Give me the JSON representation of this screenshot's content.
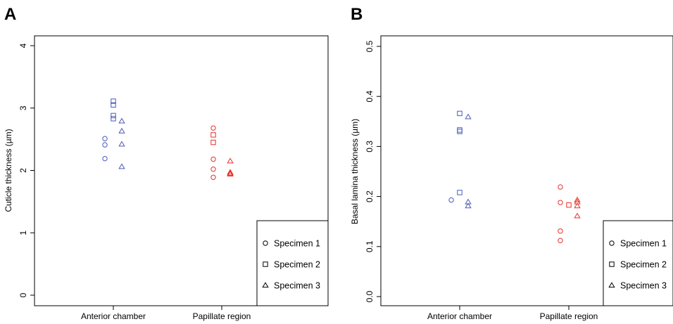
{
  "colors": {
    "anterior": "#4a5ab8",
    "papillate": "#e8302a",
    "axis": "#000000"
  },
  "legend": {
    "entries": [
      {
        "label": "Specimen 1",
        "shape": "circle"
      },
      {
        "label": "Specimen 2",
        "shape": "square"
      },
      {
        "label": "Specimen 3",
        "shape": "triangle"
      }
    ]
  },
  "chart_data": [
    {
      "panel": "A",
      "type": "scatter",
      "ylabel": "Cuticle thickness (µm)",
      "xlabel": "",
      "categories": [
        "Anterior chamber",
        "Papillate region"
      ],
      "ylim": [
        0,
        4
      ],
      "yticks": [
        0,
        1,
        2,
        3,
        4
      ],
      "yticklabels": [
        "0",
        "1",
        "2",
        "3",
        "4"
      ],
      "legend_position": "bottom-right",
      "series": [
        {
          "name": "Specimen 1",
          "points": [
            {
              "category": "Anterior chamber",
              "y": 2.51
            },
            {
              "category": "Anterior chamber",
              "y": 2.41
            },
            {
              "category": "Anterior chamber",
              "y": 2.19
            },
            {
              "category": "Papillate region",
              "y": 2.68
            },
            {
              "category": "Papillate region",
              "y": 2.18
            },
            {
              "category": "Papillate region",
              "y": 2.02
            },
            {
              "category": "Papillate region",
              "y": 1.89
            }
          ]
        },
        {
          "name": "Specimen 2",
          "points": [
            {
              "category": "Anterior chamber",
              "y": 3.11
            },
            {
              "category": "Anterior chamber",
              "y": 3.05
            },
            {
              "category": "Anterior chamber",
              "y": 2.88
            },
            {
              "category": "Anterior chamber",
              "y": 2.83
            },
            {
              "category": "Papillate region",
              "y": 2.57
            },
            {
              "category": "Papillate region",
              "y": 2.45
            }
          ]
        },
        {
          "name": "Specimen 3",
          "points": [
            {
              "category": "Anterior chamber",
              "y": 2.79
            },
            {
              "category": "Anterior chamber",
              "y": 2.63
            },
            {
              "category": "Anterior chamber",
              "y": 2.42
            },
            {
              "category": "Anterior chamber",
              "y": 2.06
            },
            {
              "category": "Papillate region",
              "y": 2.15
            },
            {
              "category": "Papillate region",
              "y": 1.97
            },
            {
              "category": "Papillate region",
              "y": 1.95
            },
            {
              "category": "Papillate region",
              "y": 1.94
            }
          ]
        }
      ]
    },
    {
      "panel": "B",
      "type": "scatter",
      "ylabel": "Basal lamina thickness (µm)",
      "xlabel": "",
      "categories": [
        "Anterior chamber",
        "Papillate region"
      ],
      "ylim": [
        0,
        0.5
      ],
      "yticks": [
        0,
        0.1,
        0.2,
        0.3,
        0.4,
        0.5
      ],
      "yticklabels": [
        "0.0",
        "0.1",
        "0.2",
        "0.3",
        "0.4",
        "0.5"
      ],
      "legend_position": "bottom-right",
      "series": [
        {
          "name": "Specimen 1",
          "points": [
            {
              "category": "Anterior chamber",
              "y": 0.193
            },
            {
              "category": "Papillate region",
              "y": 0.219
            },
            {
              "category": "Papillate region",
              "y": 0.188
            },
            {
              "category": "Papillate region",
              "y": 0.131
            },
            {
              "category": "Papillate region",
              "y": 0.112
            }
          ]
        },
        {
          "name": "Specimen 2",
          "points": [
            {
              "category": "Anterior chamber",
              "y": 0.366
            },
            {
              "category": "Anterior chamber",
              "y": 0.333
            },
            {
              "category": "Anterior chamber",
              "y": 0.33
            },
            {
              "category": "Anterior chamber",
              "y": 0.208
            },
            {
              "category": "Papillate region",
              "y": 0.183
            }
          ]
        },
        {
          "name": "Specimen 3",
          "points": [
            {
              "category": "Anterior chamber",
              "y": 0.359
            },
            {
              "category": "Anterior chamber",
              "y": 0.189
            },
            {
              "category": "Anterior chamber",
              "y": 0.181
            },
            {
              "category": "Papillate region",
              "y": 0.193
            },
            {
              "category": "Papillate region",
              "y": 0.189
            },
            {
              "category": "Papillate region",
              "y": 0.181
            },
            {
              "category": "Papillate region",
              "y": 0.161
            }
          ]
        }
      ]
    }
  ]
}
